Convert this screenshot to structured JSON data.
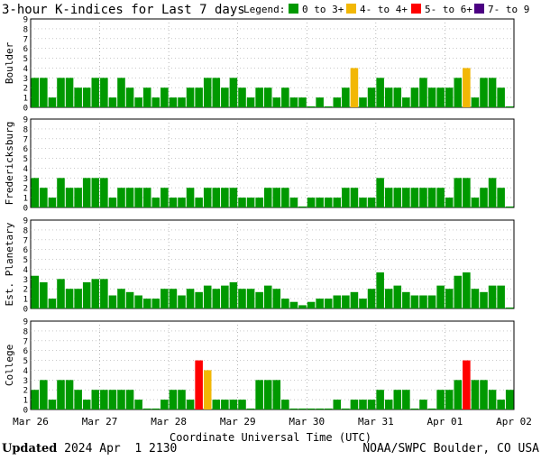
{
  "title": "3-hour K-indices for Last 7 days",
  "legend": {
    "label": "Legend:",
    "items": [
      {
        "label": "0 to 3+",
        "color": "#009900"
      },
      {
        "label": "4- to 4+",
        "color": "#f2b705"
      },
      {
        "label": "5- to 6+",
        "color": "#ff0000"
      },
      {
        "label": "7- to 9",
        "color": "#4b0082"
      }
    ]
  },
  "footer": {
    "updated_label": "Updated",
    "updated_value": "2024 Apr  1 2130",
    "source": "NOAA/SWPC Boulder, CO USA"
  },
  "chart_data": {
    "type": "bar",
    "xlabel": "Coordinate Universal Time (UTC)",
    "x_ticks": [
      "Mar 26",
      "Mar 27",
      "Mar 28",
      "Mar 29",
      "Mar 30",
      "Mar 31",
      "Apr 01",
      "Apr 02"
    ],
    "y_ticks": [
      "0",
      "1",
      "2",
      "3",
      "4",
      "5",
      "6",
      "7",
      "8",
      "9"
    ],
    "ylim": [
      0,
      9
    ],
    "grid": true,
    "bars_per_day": 8,
    "panels": [
      {
        "name": "Boulder",
        "values": [
          3,
          3,
          1,
          3,
          3,
          2,
          2,
          3,
          3,
          1,
          3,
          2,
          1,
          2,
          1,
          2,
          1,
          1,
          2,
          2,
          3,
          3,
          2,
          3,
          2,
          1,
          2,
          2,
          1,
          2,
          1,
          1,
          0.1,
          1,
          0.1,
          1,
          2,
          4,
          1,
          2,
          3,
          2,
          2,
          1,
          2,
          3,
          2,
          2,
          2,
          3,
          4,
          1,
          3,
          3,
          2,
          0.1
        ]
      },
      {
        "name": "Fredericksburg",
        "values": [
          3,
          2,
          1,
          3,
          2,
          2,
          3,
          3,
          3,
          1,
          2,
          2,
          2,
          2,
          1,
          2,
          1,
          1,
          2,
          1,
          2,
          2,
          2,
          2,
          1,
          1,
          1,
          2,
          2,
          2,
          1,
          0.1,
          1,
          1,
          1,
          1,
          2,
          2,
          1,
          1,
          3,
          2,
          2,
          2,
          2,
          2,
          2,
          2,
          1,
          3,
          3,
          1,
          2,
          3,
          2,
          0.1
        ]
      },
      {
        "name": "Est. Planetary",
        "values": [
          3.33,
          2.67,
          1,
          3,
          2,
          2,
          2.67,
          3,
          3,
          1.33,
          2,
          1.67,
          1.33,
          1,
          1,
          2,
          2,
          1.33,
          2,
          1.67,
          2.33,
          2,
          2.33,
          2.67,
          2,
          2,
          1.67,
          2.33,
          2,
          1,
          0.67,
          0.33,
          0.67,
          1,
          1,
          1.33,
          1.33,
          1.67,
          1,
          2,
          3.67,
          2,
          2.33,
          1.67,
          1.33,
          1.33,
          1.33,
          2.33,
          2,
          3.33,
          3.67,
          2,
          1.67,
          2.33,
          2.33,
          0.1
        ]
      },
      {
        "name": "College",
        "values": [
          2,
          3,
          1,
          3,
          3,
          2,
          1,
          2,
          2,
          2,
          2,
          2,
          1,
          0.1,
          0.1,
          1,
          2,
          2,
          1,
          5,
          4,
          1,
          1,
          1,
          1,
          0.1,
          3,
          3,
          3,
          1,
          0.1,
          0.1,
          0.1,
          0.1,
          0.1,
          1,
          0.1,
          1,
          1,
          1,
          2,
          1,
          2,
          2,
          0.1,
          1,
          0.1,
          2,
          2,
          3,
          5,
          3,
          3,
          2,
          1,
          2
        ]
      }
    ]
  }
}
